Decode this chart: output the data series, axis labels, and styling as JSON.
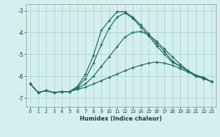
{
  "xlabel": "Humidex (Indice chaleur)",
  "bg_color": "#d5efef",
  "grid_color": "#a8d0d0",
  "line_color": "#1a6e64",
  "xlim": [
    -0.5,
    23.5
  ],
  "ylim": [
    -7.4,
    -2.7
  ],
  "yticks": [
    -7,
    -6,
    -5,
    -4,
    -3
  ],
  "xticks": [
    0,
    1,
    2,
    3,
    4,
    5,
    6,
    7,
    8,
    9,
    10,
    11,
    12,
    13,
    14,
    15,
    16,
    17,
    18,
    19,
    20,
    21,
    22,
    23
  ],
  "line1_x": [
    0,
    1,
    2,
    3,
    4,
    5,
    6,
    7,
    8,
    9,
    10,
    11,
    12,
    13,
    14,
    15,
    16,
    17,
    18,
    19,
    20,
    21,
    22,
    23
  ],
  "line1_y": [
    -6.35,
    -6.75,
    -6.65,
    -6.75,
    -6.7,
    -6.7,
    -6.6,
    -6.5,
    -6.35,
    -6.2,
    -6.05,
    -5.9,
    -5.75,
    -5.6,
    -5.5,
    -5.4,
    -5.35,
    -5.4,
    -5.5,
    -5.65,
    -5.8,
    -6.0,
    -6.1,
    -6.25
  ],
  "line2_x": [
    0,
    1,
    2,
    3,
    4,
    5,
    6,
    7,
    8,
    9,
    10,
    11,
    12,
    13,
    14,
    15,
    16,
    17,
    18,
    19,
    20,
    21,
    22,
    23
  ],
  "line2_y": [
    -6.35,
    -6.75,
    -6.65,
    -6.75,
    -6.7,
    -6.7,
    -6.55,
    -6.35,
    -6.0,
    -5.55,
    -5.1,
    -4.65,
    -4.2,
    -4.0,
    -3.95,
    -4.1,
    -4.4,
    -4.75,
    -5.1,
    -5.45,
    -5.75,
    -6.0,
    -6.1,
    -6.25
  ],
  "line3_x": [
    0,
    1,
    2,
    3,
    4,
    5,
    6,
    7,
    8,
    9,
    10,
    11,
    12,
    13,
    14,
    15,
    16,
    17,
    18,
    19,
    20,
    21,
    22,
    23
  ],
  "line3_y": [
    -6.35,
    -6.75,
    -6.65,
    -6.75,
    -6.7,
    -6.7,
    -6.5,
    -6.1,
    -5.4,
    -4.55,
    -3.8,
    -3.3,
    -3.1,
    -3.35,
    -3.75,
    -4.15,
    -4.6,
    -5.0,
    -5.35,
    -5.55,
    -5.75,
    -5.95,
    -6.1,
    -6.25
  ],
  "line4_x": [
    0,
    1,
    2,
    3,
    4,
    5,
    6,
    7,
    8,
    9,
    10,
    11,
    12,
    13,
    14,
    15,
    16,
    17,
    18,
    19,
    20,
    21,
    22,
    23
  ],
  "line4_y": [
    -6.35,
    -6.75,
    -6.65,
    -6.75,
    -6.7,
    -6.7,
    -6.45,
    -5.9,
    -5.05,
    -3.9,
    -3.45,
    -3.05,
    -3.05,
    -3.3,
    -3.65,
    -4.05,
    -4.5,
    -4.85,
    -5.3,
    -5.55,
    -5.75,
    -5.95,
    -6.05,
    -6.25
  ]
}
